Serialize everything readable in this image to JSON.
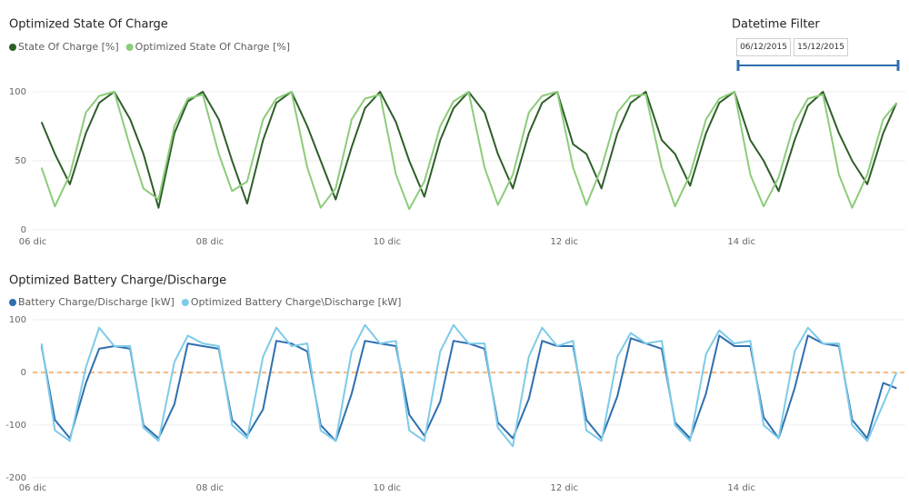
{
  "chart_data": [
    {
      "type": "line",
      "title": "Optimized State Of Charge",
      "x": [
        6.1,
        6.25,
        6.42,
        6.6,
        6.75,
        6.92,
        7.1,
        7.25,
        7.42,
        7.6,
        7.75,
        7.92,
        8.1,
        8.25,
        8.42,
        8.6,
        8.75,
        8.92,
        9.1,
        9.25,
        9.42,
        9.6,
        9.75,
        9.92,
        10.1,
        10.25,
        10.42,
        10.6,
        10.75,
        10.92,
        11.1,
        11.25,
        11.42,
        11.6,
        11.75,
        11.92,
        12.1,
        12.25,
        12.42,
        12.6,
        12.75,
        12.92,
        13.1,
        13.25,
        13.42,
        13.6,
        13.75,
        13.92,
        14.1,
        14.25,
        14.42,
        14.6,
        14.75,
        14.92,
        15.1,
        15.25,
        15.42,
        15.6,
        15.75
      ],
      "xlim": [
        6,
        15.85
      ],
      "xticks": [
        {
          "value": 6,
          "label": "06 dic"
        },
        {
          "value": 8,
          "label": "08 dic"
        },
        {
          "value": 10,
          "label": "10 dic"
        },
        {
          "value": 12,
          "label": "12 dic"
        },
        {
          "value": 14,
          "label": "14 dic"
        }
      ],
      "ylim": [
        0,
        100
      ],
      "yticks": [
        0,
        50,
        100
      ],
      "grid": true,
      "series": [
        {
          "name": "State Of Charge [%]",
          "color": "#2f5e2a",
          "values": [
            78,
            55,
            33,
            70,
            92,
            100,
            80,
            55,
            16,
            70,
            93,
            100,
            80,
            50,
            19,
            65,
            92,
            100,
            75,
            50,
            22,
            60,
            88,
            100,
            78,
            50,
            24,
            65,
            88,
            100,
            85,
            55,
            30,
            70,
            92,
            100,
            62,
            55,
            30,
            70,
            92,
            100,
            65,
            55,
            32,
            70,
            92,
            100,
            65,
            50,
            28,
            65,
            90,
            100,
            70,
            50,
            33,
            70,
            92
          ]
        },
        {
          "name": "Optimized State Of Charge [%]",
          "color": "#8ccc7a",
          "values": [
            45,
            17,
            40,
            85,
            97,
            100,
            60,
            30,
            22,
            75,
            95,
            98,
            55,
            28,
            35,
            80,
            95,
            100,
            45,
            16,
            30,
            80,
            95,
            98,
            40,
            15,
            35,
            75,
            93,
            100,
            45,
            18,
            40,
            85,
            97,
            100,
            45,
            18,
            45,
            85,
            97,
            98,
            45,
            17,
            40,
            80,
            95,
            100,
            40,
            17,
            38,
            78,
            95,
            98,
            40,
            16,
            40,
            80,
            92
          ]
        }
      ]
    },
    {
      "type": "line",
      "title": "Optimized Battery Charge/Discharge",
      "x": [
        6.1,
        6.25,
        6.42,
        6.6,
        6.75,
        6.92,
        7.1,
        7.25,
        7.42,
        7.6,
        7.75,
        7.92,
        8.1,
        8.25,
        8.42,
        8.6,
        8.75,
        8.92,
        9.1,
        9.25,
        9.42,
        9.6,
        9.75,
        9.92,
        10.1,
        10.25,
        10.42,
        10.6,
        10.75,
        10.92,
        11.1,
        11.25,
        11.42,
        11.6,
        11.75,
        11.92,
        12.1,
        12.25,
        12.42,
        12.6,
        12.75,
        12.92,
        13.1,
        13.25,
        13.42,
        13.6,
        13.75,
        13.92,
        14.1,
        14.25,
        14.42,
        14.6,
        14.75,
        14.92,
        15.1,
        15.25,
        15.42,
        15.6,
        15.75
      ],
      "xlim": [
        6,
        15.85
      ],
      "xticks": [
        {
          "value": 6,
          "label": "06 dic"
        },
        {
          "value": 8,
          "label": "08 dic"
        },
        {
          "value": 10,
          "label": "10 dic"
        },
        {
          "value": 12,
          "label": "12 dic"
        },
        {
          "value": 14,
          "label": "14 dic"
        }
      ],
      "ylim": [
        -200,
        100
      ],
      "yticks": [
        -200,
        -100,
        0,
        100
      ],
      "grid": true,
      "reference_lines": [
        {
          "value": 0,
          "color": "#f2a65a"
        }
      ],
      "series": [
        {
          "name": "Battery Charge/Discharge [kW]",
          "color": "#2f6fb0",
          "values": [
            50,
            -90,
            -125,
            -20,
            45,
            50,
            45,
            -100,
            -125,
            -60,
            55,
            50,
            45,
            -90,
            -120,
            -70,
            60,
            55,
            40,
            -100,
            -130,
            -40,
            60,
            55,
            50,
            -80,
            -120,
            -55,
            60,
            55,
            45,
            -95,
            -125,
            -50,
            60,
            50,
            50,
            -90,
            -125,
            -45,
            65,
            55,
            45,
            -95,
            -125,
            -40,
            70,
            50,
            50,
            -85,
            -125,
            -30,
            70,
            55,
            50,
            -90,
            -125,
            -20,
            -30
          ]
        },
        {
          "name": "Optimized Battery Charge\\Discharge [kW]",
          "color": "#7ecbe8",
          "values": [
            55,
            -110,
            -130,
            10,
            85,
            50,
            50,
            -105,
            -130,
            20,
            70,
            55,
            50,
            -100,
            -125,
            30,
            85,
            50,
            55,
            -110,
            -130,
            40,
            90,
            55,
            60,
            -110,
            -130,
            40,
            90,
            55,
            55,
            -105,
            -140,
            30,
            85,
            50,
            60,
            -110,
            -130,
            30,
            75,
            55,
            60,
            -100,
            -130,
            35,
            80,
            55,
            60,
            -100,
            -125,
            40,
            85,
            55,
            55,
            -100,
            -130,
            -60,
            0
          ]
        }
      ]
    }
  ],
  "filter": {
    "title": "Datetime Filter",
    "start": "06/12/2015",
    "end": "15/12/2015"
  }
}
